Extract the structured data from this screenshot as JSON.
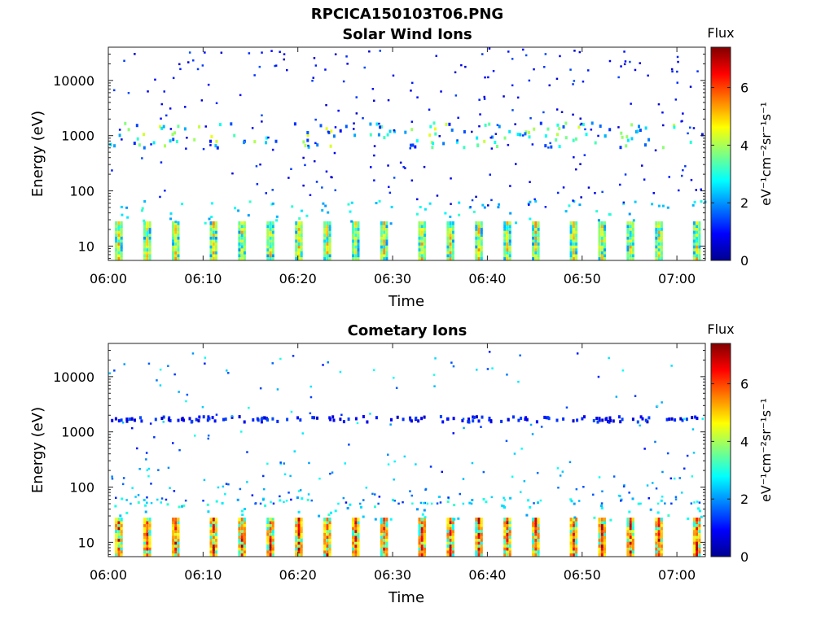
{
  "figure_title": "RPCICA150103T06.PNG",
  "colormap": "jet",
  "chart_data": [
    {
      "type": "heatmap",
      "title": "Solar Wind Ions",
      "xlabel": "Time",
      "ylabel": "Energy (eV)",
      "x_range": [
        "06:00",
        "07:03"
      ],
      "x_ticks": [
        "06:00",
        "06:10",
        "06:20",
        "06:30",
        "06:40",
        "06:50",
        "07:00"
      ],
      "y_scale": "log",
      "y_range": [
        5.5,
        40000
      ],
      "y_ticks": [
        "10",
        "100",
        "1000",
        "10000"
      ],
      "colorbar": {
        "title": "Flux",
        "label": "eV⁻¹cm⁻²sr⁻¹s⁻¹",
        "range": [
          0,
          7.4
        ],
        "ticks": [
          "0",
          "2",
          "4",
          "6"
        ]
      },
      "bands": [
        {
          "name": "low-energy bursts (~10 eV)",
          "energy_range_eV": [
            6,
            27
          ],
          "flux_range": [
            2,
            5.5
          ],
          "times": [
            "06:01",
            "06:04",
            "06:07",
            "06:11",
            "06:14",
            "06:17",
            "06:20",
            "06:23",
            "06:26",
            "06:29",
            "06:33",
            "06:36",
            "06:39",
            "06:42",
            "06:45",
            "06:49",
            "06:52",
            "06:55",
            "06:58",
            "07:02"
          ]
        },
        {
          "name": "solar wind beam (~700-1600 eV)",
          "energy_range_eV": [
            600,
            1700
          ],
          "flux_range": [
            1,
            4.5
          ]
        },
        {
          "name": "sparse counts",
          "energy_range_eV": [
            50,
            40000
          ],
          "flux_range": [
            0.5,
            1.5
          ]
        }
      ]
    },
    {
      "type": "heatmap",
      "title": "Cometary Ions",
      "xlabel": "Time",
      "ylabel": "Energy (eV)",
      "x_range": [
        "06:00",
        "07:03"
      ],
      "x_ticks": [
        "06:00",
        "06:10",
        "06:20",
        "06:30",
        "06:40",
        "06:50",
        "07:00"
      ],
      "y_scale": "log",
      "y_range": [
        5.5,
        40000
      ],
      "y_ticks": [
        "10",
        "100",
        "1000",
        "10000"
      ],
      "colorbar": {
        "title": "Flux",
        "label": "eV⁻¹cm⁻²sr⁻¹s⁻¹",
        "range": [
          0,
          7.4
        ],
        "ticks": [
          "0",
          "2",
          "4",
          "6"
        ]
      },
      "bands": [
        {
          "name": "low-energy cometary ions (~10 eV)",
          "energy_range_eV": [
            6,
            27
          ],
          "flux_range": [
            3,
            7.2
          ],
          "times": [
            "06:01",
            "06:04",
            "06:07",
            "06:11",
            "06:14",
            "06:17",
            "06:20",
            "06:23",
            "06:26",
            "06:29",
            "06:33",
            "06:36",
            "06:39",
            "06:42",
            "06:45",
            "06:49",
            "06:52",
            "06:55",
            "06:58",
            "07:02"
          ]
        },
        {
          "name": "high-energy blips (~1700 eV)",
          "energy_range_eV": [
            1500,
            1900
          ],
          "flux_range": [
            0.5,
            1.5
          ]
        },
        {
          "name": "sparse counts",
          "energy_range_eV": [
            50,
            30000
          ],
          "flux_range": [
            1,
            3
          ]
        }
      ]
    }
  ]
}
